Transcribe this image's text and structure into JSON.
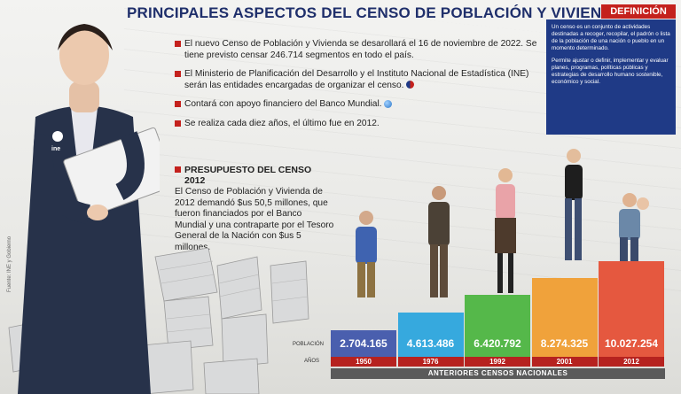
{
  "title": "PRINCIPALES ASPECTOS DEL CENSO DE POBLACIÓN Y VIVIENDA",
  "definition": {
    "tag": "DEFINICIÓN",
    "p1": "Un censo es un conjunto de actividades destinadas a recoger, recopilar, el padrón o lista de la población de una nación o pueblo en un momento determinado.",
    "p2": "Permite ajustar o definir, implementar y evaluar planes, programas, políticas públicas y estrategias de desarrollo humano sostenible, económico y social."
  },
  "bullets": [
    "El nuevo Censo de Población y Vivienda se desarollará el 16 de noviembre de 2022. Se tiene previsto censar 246.714 segmentos en todo el país.",
    "El Ministerio de Planificación del Desarrollo y el Instituto Nacional de Estadística (INE) serán las entidades encargadas de organizar el censo.",
    "Contará con apoyo financiero del Banco Mundial.",
    "Se realiza cada diez años, el último fue en 2012."
  ],
  "budget": {
    "heading": "PRESUPUESTO DEL CENSO 2012",
    "text": "El Censo de Población y Vivienda de 2012 demandó $us 50,5 millones, que fueron financiados por el Banco Mundial y una contraparte por el Tesoro General de la Nación con $us 5 millones."
  },
  "source": "Fuente: INE y Gobierno",
  "badge": "ine",
  "labels": {
    "population": "POBLACIÓN",
    "years": "AÑOS",
    "footer": "ANTERIORES CENSOS NACIONALES"
  },
  "chart_data": {
    "type": "bar",
    "categories": [
      "1950",
      "1976",
      "1992",
      "2001",
      "2012"
    ],
    "values": [
      2704165,
      4613486,
      6420792,
      8274325,
      10027254
    ],
    "value_labels": [
      "2.704.165",
      "4.613.486",
      "6.420.792",
      "8.274.325",
      "10.027.254"
    ],
    "colors": [
      "#4a5fae",
      "#36a9de",
      "#55b84a",
      "#f0a23b",
      "#e5583f"
    ]
  }
}
